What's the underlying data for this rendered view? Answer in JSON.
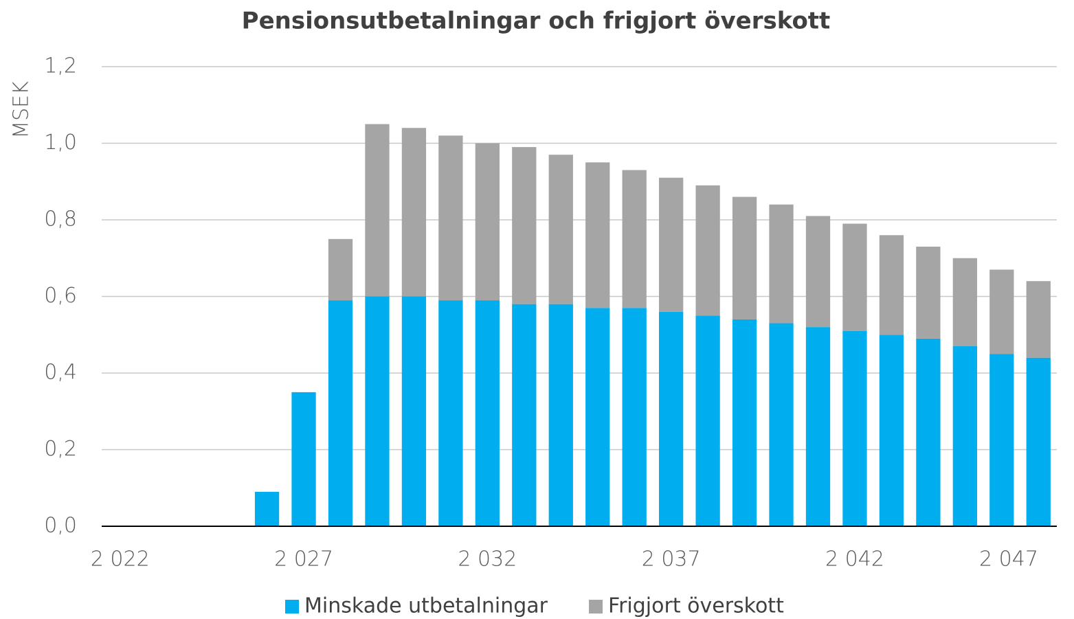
{
  "chart_data": {
    "type": "stacked_bar",
    "title": "Pensionsutbetalningar och frigjort överskott",
    "y_label": "MSEK",
    "categories": [
      "2 022",
      null,
      null,
      null,
      null,
      "2 027",
      null,
      null,
      null,
      null,
      "2 032",
      null,
      null,
      null,
      null,
      "2 037",
      null,
      null,
      null,
      null,
      "2 042",
      null,
      null,
      null,
      null,
      "2 047"
    ],
    "series": [
      {
        "name": "Minskade utbetalningar",
        "color": "#00aeef",
        "values": [
          0,
          0,
          0,
          0,
          0.09,
          0.35,
          0.59,
          0.6,
          0.6,
          0.59,
          0.59,
          0.58,
          0.58,
          0.57,
          0.57,
          0.56,
          0.55,
          0.54,
          0.53,
          0.52,
          0.51,
          0.5,
          0.49,
          0.47,
          0.45,
          0.44
        ]
      },
      {
        "name": "Frigjort överskott",
        "color": "#a5a5a5",
        "values": [
          0,
          0,
          0,
          0,
          0,
          0,
          0.16,
          0.45,
          0.44,
          0.43,
          0.41,
          0.41,
          0.39,
          0.38,
          0.36,
          0.35,
          0.34,
          0.32,
          0.31,
          0.29,
          0.28,
          0.26,
          0.24,
          0.23,
          0.22,
          0.2
        ]
      }
    ],
    "ylim": [
      0,
      1.2
    ],
    "yticks": [
      {
        "value": 0,
        "label": "0,0"
      },
      {
        "value": 0.2,
        "label": "0,2"
      },
      {
        "value": 0.4,
        "label": "0,4"
      },
      {
        "value": 0.6,
        "label": "0,6"
      },
      {
        "value": 0.8,
        "label": "0,8"
      },
      {
        "value": 1.0,
        "label": "1,0"
      },
      {
        "value": 1.2,
        "label": "1,2"
      }
    ],
    "grid": true,
    "legend": "bottom"
  }
}
